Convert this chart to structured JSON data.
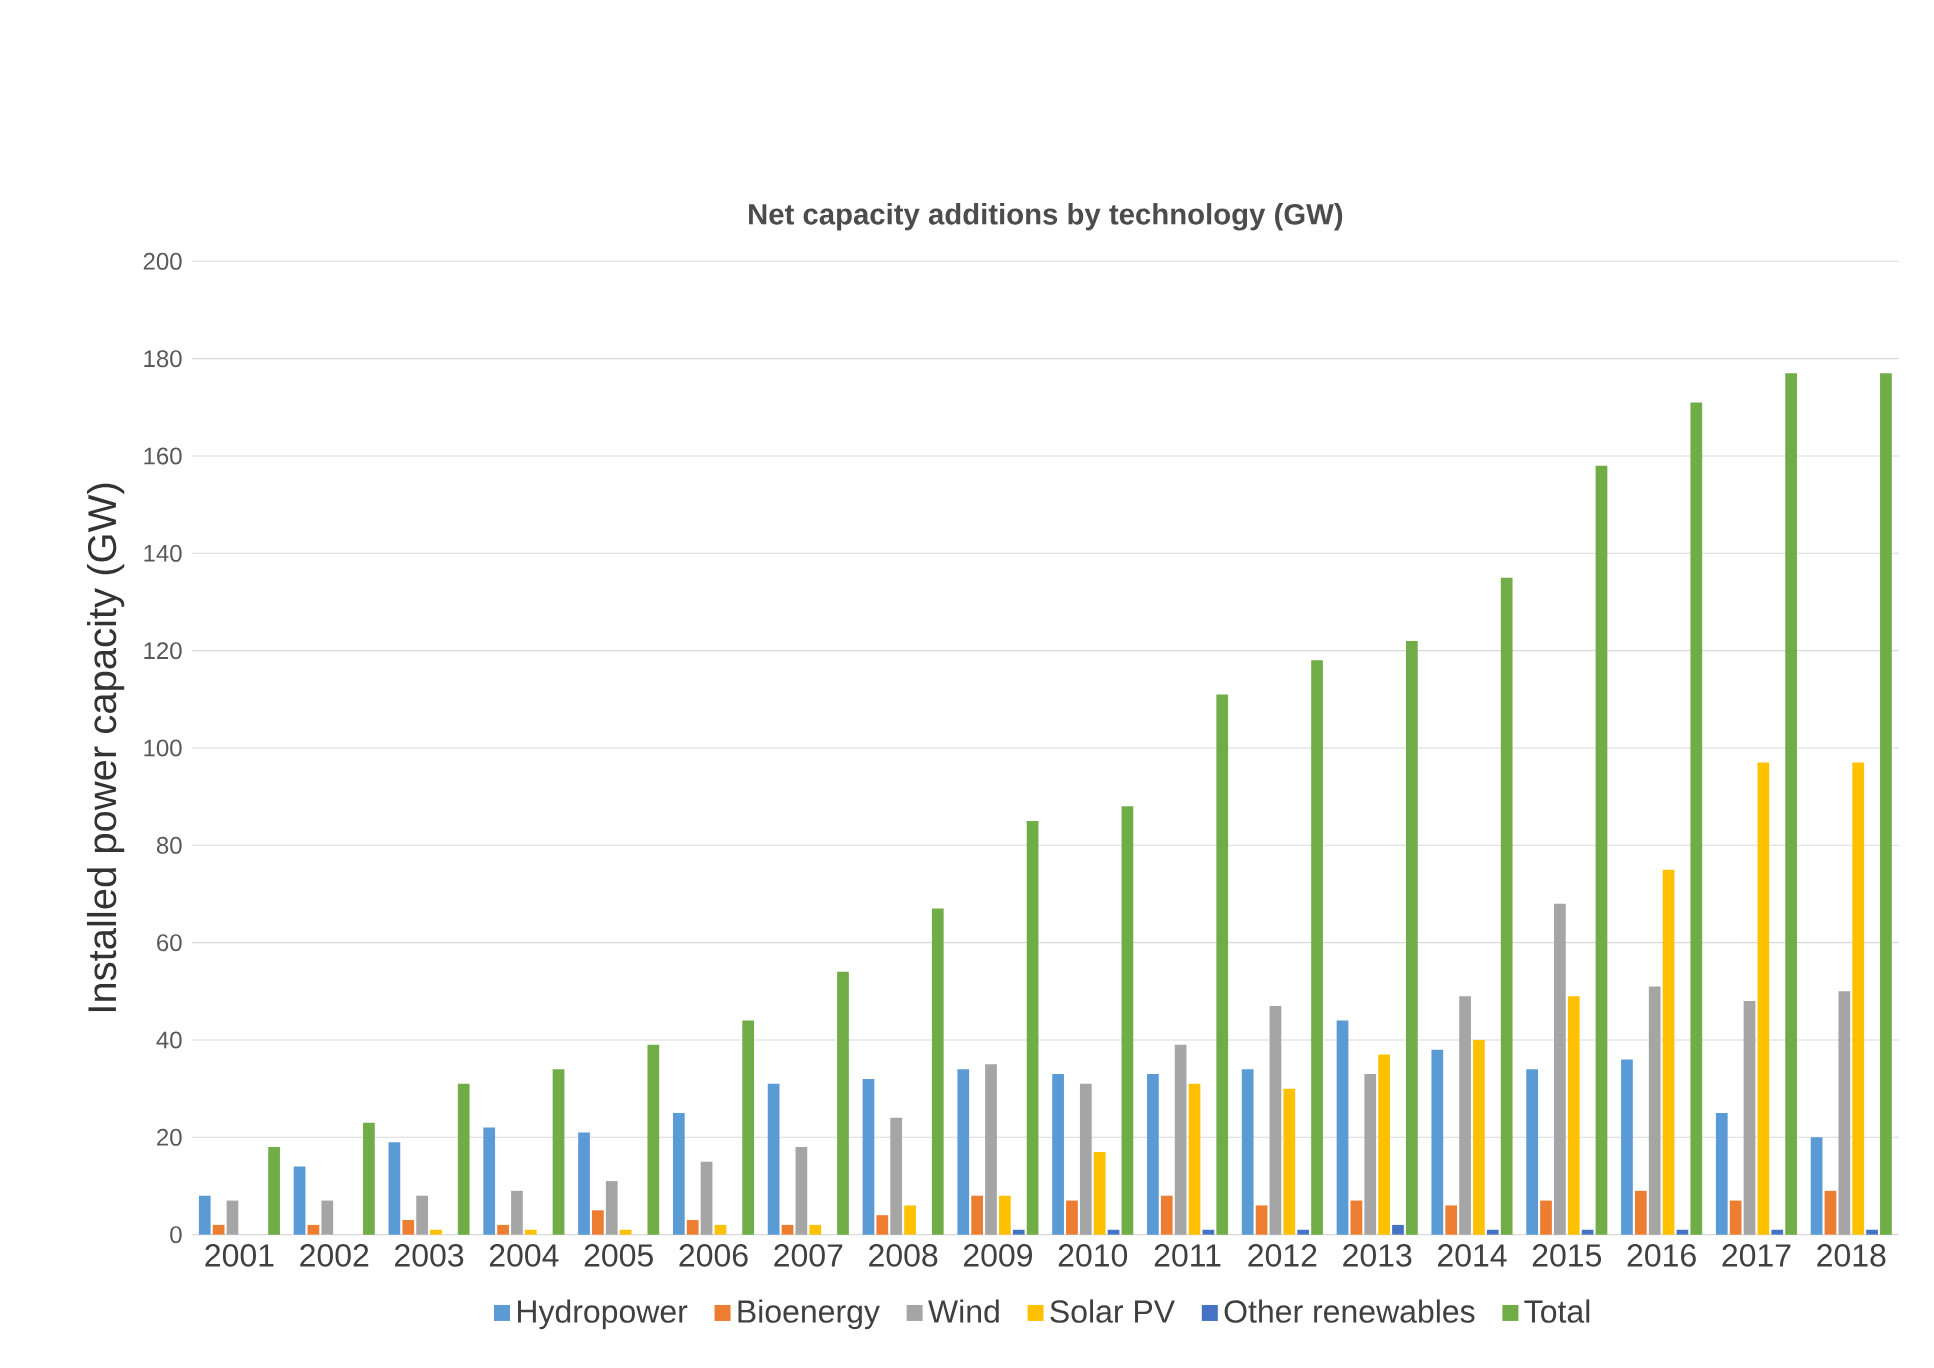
{
  "chart_data": {
    "type": "bar",
    "title": "Net capacity additions by technology (GW)",
    "ylabel": "Installed power capacity (GW)",
    "categories": [
      "2001",
      "2002",
      "2003",
      "2004",
      "2005",
      "2006",
      "2007",
      "2008",
      "2009",
      "2010",
      "2011",
      "2012",
      "2013",
      "2014",
      "2015",
      "2016",
      "2017",
      "2018"
    ],
    "series": [
      {
        "name": "Hydropower",
        "color": "#5b9bd5",
        "values": [
          8,
          14,
          19,
          22,
          21,
          25,
          31,
          32,
          34,
          33,
          33,
          34,
          44,
          38,
          34,
          36,
          25,
          20
        ]
      },
      {
        "name": "Bioenergy",
        "color": "#ed7d31",
        "values": [
          2,
          2,
          3,
          2,
          5,
          3,
          2,
          4,
          8,
          7,
          8,
          6,
          7,
          6,
          7,
          9,
          7,
          9
        ]
      },
      {
        "name": "Wind",
        "color": "#a5a5a5",
        "values": [
          7,
          7,
          8,
          9,
          11,
          15,
          18,
          24,
          35,
          31,
          39,
          47,
          33,
          49,
          68,
          51,
          48,
          50
        ]
      },
      {
        "name": "Solar PV",
        "color": "#ffc000",
        "values": [
          0,
          0,
          1,
          1,
          1,
          2,
          2,
          6,
          8,
          17,
          31,
          30,
          37,
          40,
          49,
          75,
          97,
          97
        ]
      },
      {
        "name": "Other renewables",
        "color": "#4472c4",
        "values": [
          0,
          0,
          0,
          0,
          0,
          0,
          0,
          0,
          1,
          1,
          1,
          1,
          2,
          1,
          1,
          1,
          1,
          1
        ]
      },
      {
        "name": "Total",
        "color": "#70ad47",
        "values": [
          18,
          23,
          31,
          34,
          39,
          44,
          54,
          67,
          85,
          88,
          111,
          118,
          122,
          135,
          158,
          171,
          177,
          177
        ]
      }
    ],
    "ylim": [
      0,
      200
    ],
    "yticks": [
      0,
      20,
      40,
      60,
      80,
      100,
      120,
      140,
      160,
      180,
      200
    ],
    "grid": "y",
    "legend": "bottom"
  }
}
